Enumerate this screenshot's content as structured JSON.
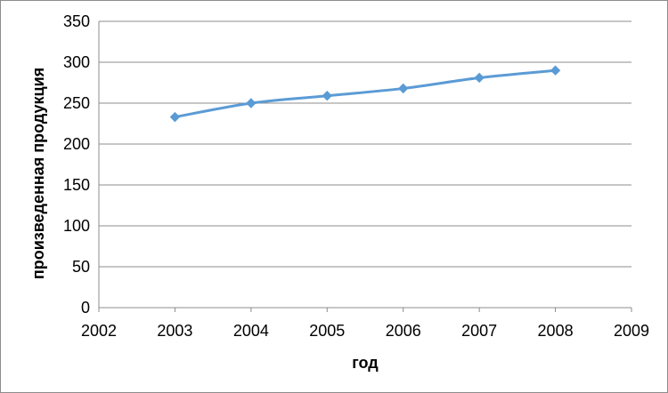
{
  "chart_data": {
    "type": "scatter",
    "title": "",
    "xlabel": "год",
    "ylabel": "произведенная продукция",
    "xlim": [
      2002,
      2009
    ],
    "ylim": [
      0,
      350
    ],
    "x_ticks": [
      2002,
      2003,
      2004,
      2005,
      2006,
      2007,
      2008,
      2009
    ],
    "y_ticks": [
      0,
      50,
      100,
      150,
      200,
      250,
      300,
      350
    ],
    "grid": "horizontal",
    "legend": "none",
    "series": [
      {
        "color": "#5b9bd5",
        "marker": "diamond",
        "line": "smooth",
        "x": [
          2003,
          2004,
          2005,
          2006,
          2007,
          2008
        ],
        "y": [
          233,
          250,
          259,
          268,
          281,
          290
        ]
      }
    ]
  }
}
